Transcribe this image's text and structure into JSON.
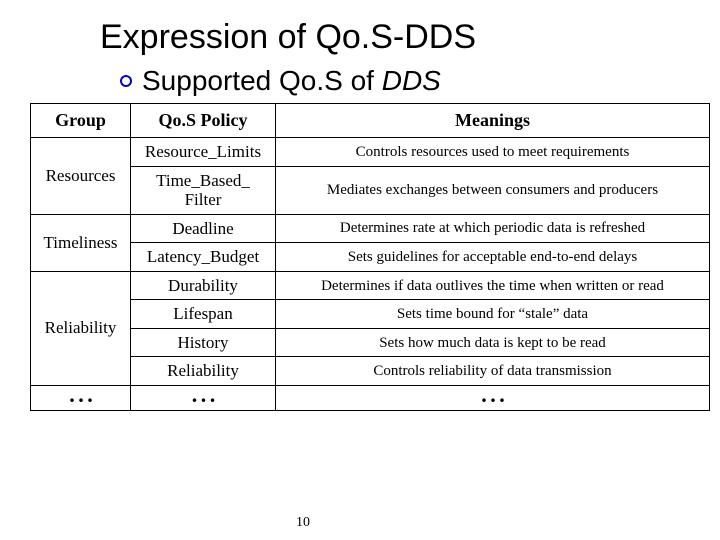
{
  "title": "Expression of Qo.S-DDS",
  "subtitle_prefix": "Supported Qo.S of ",
  "subtitle_italic": "DDS",
  "headers": {
    "group": "Group",
    "policy": "Qo.S Policy",
    "meanings": "Meanings"
  },
  "groups": {
    "resources": "Resources",
    "timeliness": "Timeliness",
    "reliability": "Reliability",
    "more": ". . ."
  },
  "rows": {
    "r1": {
      "policy": "Resource_Limits",
      "meaning": "Controls resources used to meet requirements"
    },
    "r2": {
      "policy": "Time_Based_\nFilter",
      "meaning": "Mediates exchanges between consumers and producers"
    },
    "r3": {
      "policy": "Deadline",
      "meaning": "Determines rate at which periodic data is refreshed"
    },
    "r4": {
      "policy": "Latency_Budget",
      "meaning": "Sets guidelines for acceptable end-to-end delays"
    },
    "r5": {
      "policy": "Durability",
      "meaning": "Determines if data outlives the time when written or read"
    },
    "r6": {
      "policy": "Lifespan",
      "meaning": "Sets time bound for “stale” data"
    },
    "r7": {
      "policy": "History",
      "meaning": "Sets how much data is kept to be read"
    },
    "r8": {
      "policy": "Reliability",
      "meaning": "Controls reliability of data transmission"
    },
    "r9": {
      "policy": ". . .",
      "meaning": ". . ."
    }
  },
  "page_number": "10",
  "colors": {
    "bullet_border": "#0000cc",
    "text": "#000000",
    "border": "#000000",
    "background": "#ffffff"
  }
}
